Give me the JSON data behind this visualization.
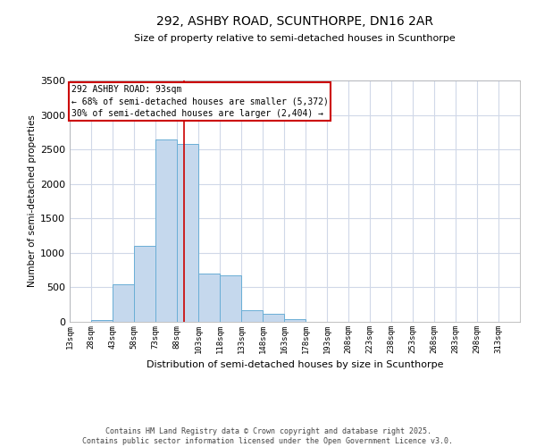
{
  "title1": "292, ASHBY ROAD, SCUNTHORPE, DN16 2AR",
  "title2": "Size of property relative to semi-detached houses in Scunthorpe",
  "xlabel": "Distribution of semi-detached houses by size in Scunthorpe",
  "ylabel": "Number of semi-detached properties",
  "bar_values": [
    5,
    30,
    550,
    1100,
    2650,
    2580,
    700,
    680,
    170,
    120,
    40,
    0,
    0,
    0,
    0,
    0,
    0,
    0,
    0,
    0,
    0
  ],
  "bin_edges": [
    13,
    28,
    43,
    58,
    73,
    88,
    103,
    118,
    133,
    148,
    163,
    178,
    193,
    208,
    223,
    238,
    253,
    268,
    283,
    298,
    313,
    328
  ],
  "bin_labels": [
    "13sqm",
    "28sqm",
    "43sqm",
    "58sqm",
    "73sqm",
    "88sqm",
    "103sqm",
    "118sqm",
    "133sqm",
    "148sqm",
    "163sqm",
    "178sqm",
    "193sqm",
    "208sqm",
    "223sqm",
    "238sqm",
    "253sqm",
    "268sqm",
    "283sqm",
    "298sqm",
    "313sqm"
  ],
  "bar_color": "#C5D8ED",
  "bar_edgecolor": "#6aaed6",
  "property_line_x": 93,
  "property_line_color": "#cc0000",
  "annotation_text": "292 ASHBY ROAD: 93sqm\n← 68% of semi-detached houses are smaller (5,372)\n30% of semi-detached houses are larger (2,404) →",
  "annotation_box_color": "#ffffff",
  "annotation_box_edgecolor": "#cc0000",
  "ylim": [
    0,
    3500
  ],
  "yticks": [
    0,
    500,
    1000,
    1500,
    2000,
    2500,
    3000,
    3500
  ],
  "background_color": "#ffffff",
  "grid_color": "#d0d8e8",
  "footer_line1": "Contains HM Land Registry data © Crown copyright and database right 2025.",
  "footer_line2": "Contains public sector information licensed under the Open Government Licence v3.0."
}
